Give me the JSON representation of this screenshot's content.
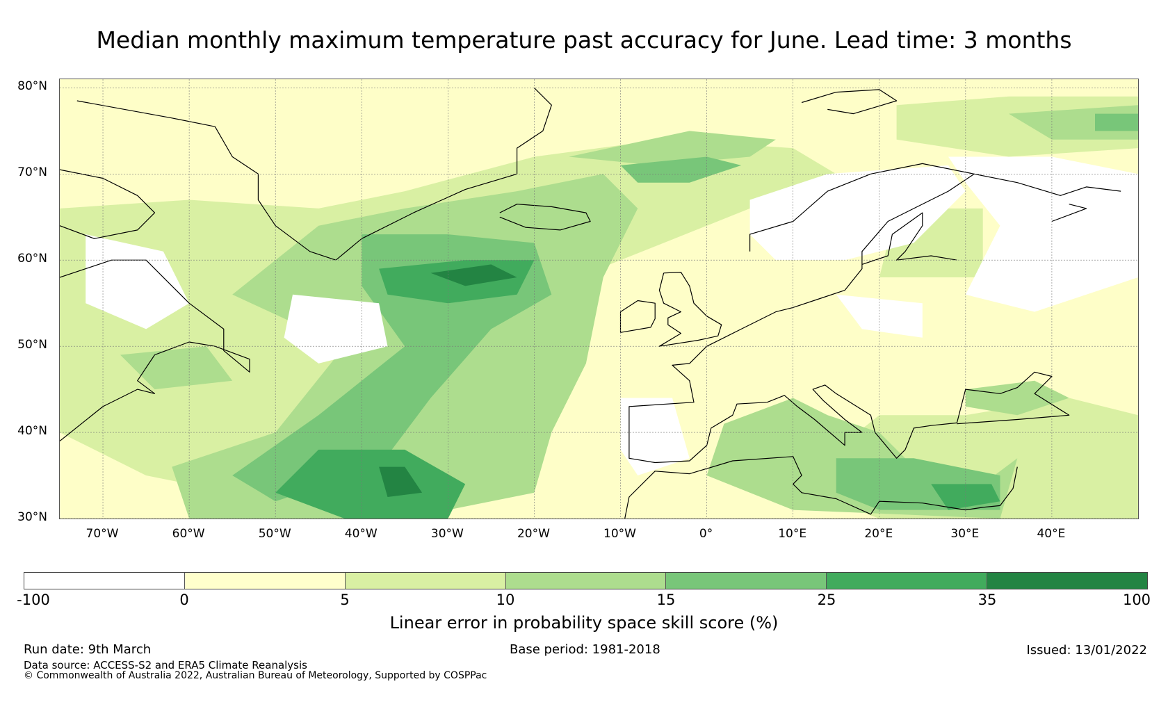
{
  "title": "Median monthly maximum temperature past accuracy for June. Lead time: 3 months",
  "map": {
    "region": "North Atlantic and Europe",
    "lat_range": [
      30,
      81
    ],
    "lon_range": [
      -75,
      50
    ],
    "lat_labels": [
      "30°N",
      "40°N",
      "50°N",
      "60°N",
      "70°N",
      "80°N"
    ],
    "lat_values": [
      30,
      40,
      50,
      60,
      70,
      80
    ],
    "lon_labels": [
      "70°W",
      "60°W",
      "50°W",
      "40°W",
      "30°W",
      "20°W",
      "10°W",
      "0°",
      "10°E",
      "20°E",
      "30°E",
      "40°E"
    ],
    "lon_values": [
      -70,
      -60,
      -50,
      -40,
      -30,
      -20,
      -10,
      0,
      10,
      20,
      30,
      40
    ]
  },
  "colorbar": {
    "label": "Linear error in probability space skill score (%)",
    "ticks": [
      "-100",
      "0",
      "5",
      "10",
      "15",
      "25",
      "35",
      "100"
    ],
    "bins": [
      {
        "from": -100,
        "to": 0,
        "color": "#ffffff"
      },
      {
        "from": 0,
        "to": 5,
        "color": "#ffffcc"
      },
      {
        "from": 5,
        "to": 10,
        "color": "#d9f0a3"
      },
      {
        "from": 10,
        "to": 15,
        "color": "#addd8e"
      },
      {
        "from": 15,
        "to": 25,
        "color": "#78c679"
      },
      {
        "from": 25,
        "to": 35,
        "color": "#41ab5d"
      },
      {
        "from": 35,
        "to": 100,
        "color": "#238443"
      }
    ]
  },
  "footer": {
    "run_date": "Run date: 9th March",
    "base_period": "Base period: 1981-2018",
    "issued": "Issued: 13/01/2022",
    "data_source": "Data source: ACCESS-S2 and ERA5 Climate Reanalysis",
    "copyright": "© Commonwealth of Australia 2022, Australian Bureau of Meteorology, Supported by COSPPac"
  }
}
